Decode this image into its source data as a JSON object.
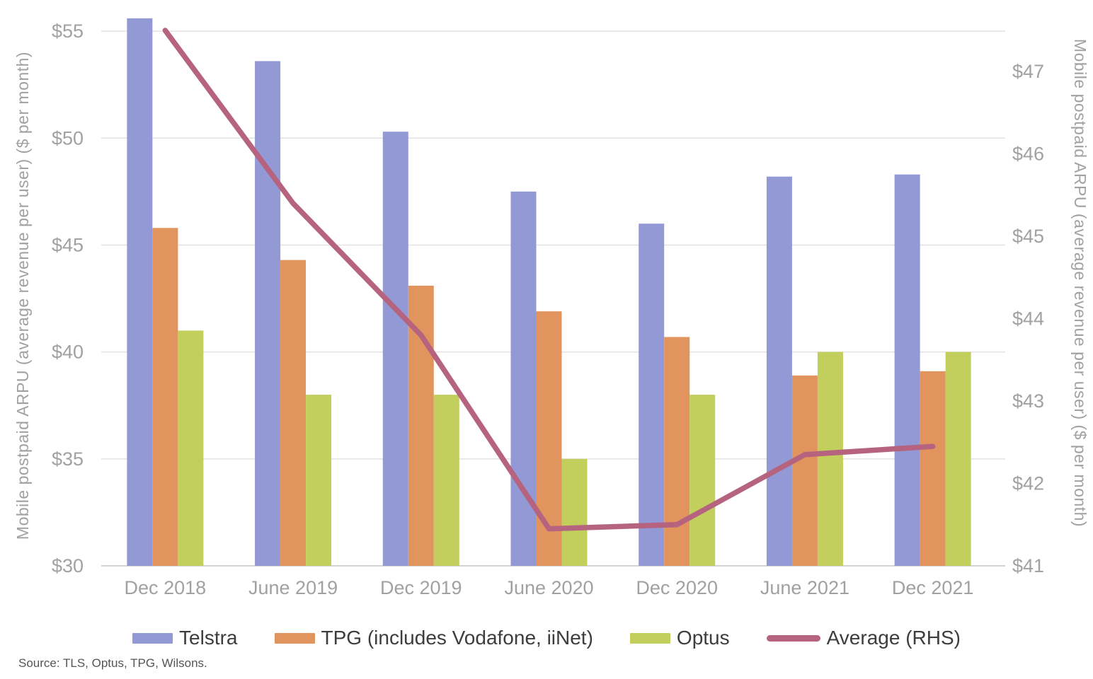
{
  "chart_data": {
    "type": "bar",
    "subtype": "grouped-bar-with-line-overlay",
    "categories": [
      "Dec 2018",
      "June 2019",
      "Dec 2019",
      "June 2020",
      "Dec 2020",
      "June 2021",
      "Dec 2021"
    ],
    "series": [
      {
        "name": "Telstra",
        "kind": "bar",
        "axis": "left",
        "color": "#9299d4",
        "values": [
          55.6,
          53.6,
          50.3,
          47.5,
          46.0,
          48.2,
          48.3
        ]
      },
      {
        "name": "TPG (includes Vodafone, iiNet)",
        "kind": "bar",
        "axis": "left",
        "color": "#e2945f",
        "values": [
          45.8,
          44.3,
          43.1,
          41.9,
          40.7,
          38.9,
          39.1
        ]
      },
      {
        "name": "Optus",
        "kind": "bar",
        "axis": "left",
        "color": "#c2cf5d",
        "values": [
          41.0,
          38.0,
          38.0,
          35.0,
          38.0,
          40.0,
          40.0
        ]
      },
      {
        "name": "Average (RHS)",
        "kind": "line",
        "axis": "right",
        "color": "#b5637f",
        "values": [
          47.5,
          45.4,
          43.8,
          41.45,
          41.5,
          42.35,
          42.45
        ]
      }
    ],
    "title": "",
    "xlabel": "",
    "left_axis": {
      "label": "Mobile postpaid ARPU (average revenue per user) ($ per month)",
      "tick_values": [
        30,
        35,
        40,
        45,
        50,
        55
      ],
      "tick_labels": [
        "$30",
        "$35",
        "$40",
        "$45",
        "$50",
        "$55"
      ],
      "ylim": [
        30,
        55.73
      ]
    },
    "right_axis": {
      "label": "Mobile postpaid ARPU (average revenue per user) ($ per month)",
      "tick_values": [
        41,
        42,
        43,
        44,
        45,
        46,
        47
      ],
      "tick_labels": [
        "$41",
        "$42",
        "$43",
        "$44",
        "$45",
        "$46",
        "$47"
      ],
      "ylim": [
        41,
        47.68
      ]
    },
    "grid": true,
    "legend_position": "bottom",
    "colors": {
      "gridline": "#e2e2e2",
      "baseline": "#c6c6c6",
      "tick_text": "#a1a1a1",
      "legend_text": "#3d3d3d"
    }
  },
  "legend": {
    "items": [
      {
        "label": "Telstra",
        "swatch": "bar",
        "color": "#9299d4"
      },
      {
        "label": "TPG (includes Vodafone, iiNet)",
        "swatch": "bar",
        "color": "#e2945f"
      },
      {
        "label": "Optus",
        "swatch": "bar",
        "color": "#c2cf5d"
      },
      {
        "label": "Average (RHS)",
        "swatch": "line",
        "color": "#b5637f"
      }
    ]
  },
  "source_note": "Source:  TLS, Optus, TPG, Wilsons."
}
